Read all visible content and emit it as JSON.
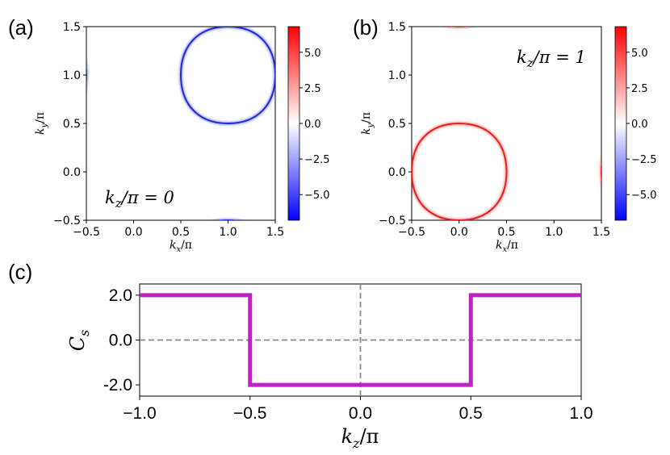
{
  "panel_labels": [
    "(a)",
    "(b)",
    "(c)"
  ],
  "chart_data": [
    {
      "type": "heatmap",
      "label": "(a)",
      "annotation": "k_z/π = 0",
      "annotation_parts": [
        "k",
        "z",
        "/π = 0"
      ],
      "xlabel_parts": [
        "k",
        "x",
        "/π"
      ],
      "ylabel_parts": [
        "k",
        "y",
        "/π"
      ],
      "xlim": [
        -0.5,
        1.5
      ],
      "ylim": [
        -0.5,
        1.5
      ],
      "xticks": [
        -0.5,
        0.0,
        0.5,
        1.0,
        1.5
      ],
      "yticks": [
        -0.5,
        0.0,
        0.5,
        1.0,
        1.5
      ],
      "xtick_labels": [
        "−0.5",
        "0.0",
        "0.5",
        "1.0",
        "1.5"
      ],
      "ytick_labels": [
        "−0.5",
        "0.0",
        "0.5",
        "1.0",
        "1.5"
      ],
      "pocket_center": [
        1.0,
        1.0
      ],
      "pocket_radius": 0.5,
      "pocket_sign": "negative",
      "pocket_color": "#1f2bd6",
      "colorbar": {
        "min": -6.8,
        "max": 6.8,
        "ticks": [
          5.0,
          2.5,
          0.0,
          -2.5,
          -5.0
        ],
        "tick_labels": [
          "5.0",
          "2.5",
          "0.0",
          "−2.5",
          "−5.0"
        ]
      }
    },
    {
      "type": "heatmap",
      "label": "(b)",
      "annotation": "k_z/π = 1",
      "annotation_parts": [
        "k",
        "z",
        "/π = 1"
      ],
      "xlabel_parts": [
        "k",
        "x",
        "/π"
      ],
      "ylabel_parts": [
        "k",
        "y",
        "/π"
      ],
      "xlim": [
        -0.5,
        1.5
      ],
      "ylim": [
        -0.5,
        1.5
      ],
      "xticks": [
        -0.5,
        0.0,
        0.5,
        1.0,
        1.5
      ],
      "yticks": [
        -0.5,
        0.0,
        0.5,
        1.0,
        1.5
      ],
      "xtick_labels": [
        "−0.5",
        "0.0",
        "0.5",
        "1.0",
        "1.5"
      ],
      "ytick_labels": [
        "−0.5",
        "0.0",
        "0.5",
        "1.0",
        "1.5"
      ],
      "pocket_center": [
        0.0,
        0.0
      ],
      "pocket_radius": 0.5,
      "pocket_sign": "positive",
      "pocket_color": "#e62020",
      "colorbar": {
        "min": -6.8,
        "max": 6.8,
        "ticks": [
          5.0,
          2.5,
          0.0,
          -2.5,
          -5.0
        ],
        "tick_labels": [
          "5.0",
          "2.5",
          "0.0",
          "−2.5",
          "−5.0"
        ]
      }
    },
    {
      "type": "line",
      "label": "(c)",
      "xlabel_parts": [
        "k",
        "z",
        "/π"
      ],
      "ylabel_parts": [
        "C",
        "s",
        ""
      ],
      "xlim": [
        -1.0,
        1.0
      ],
      "ylim": [
        -2.5,
        2.5
      ],
      "xticks": [
        -1.0,
        -0.5,
        0.0,
        0.5,
        1.0
      ],
      "xtick_labels": [
        "−1.0",
        "−0.5",
        "0.0",
        "0.5",
        "1.0"
      ],
      "yticks": [
        2.0,
        0.0,
        -2.0
      ],
      "ytick_labels": [
        "2.0",
        "0.0",
        "-2.0"
      ],
      "series": [
        {
          "name": "C_s",
          "color": "#c21fc9",
          "x": [
            -1.0,
            -0.5,
            -0.5,
            0.5,
            0.5,
            1.0
          ],
          "y": [
            2.0,
            2.0,
            -2.0,
            -2.0,
            2.0,
            2.0
          ]
        }
      ],
      "reference_lines": {
        "x": 0.0,
        "y": 0.0,
        "color": "#888888",
        "style": "dashed"
      }
    }
  ]
}
